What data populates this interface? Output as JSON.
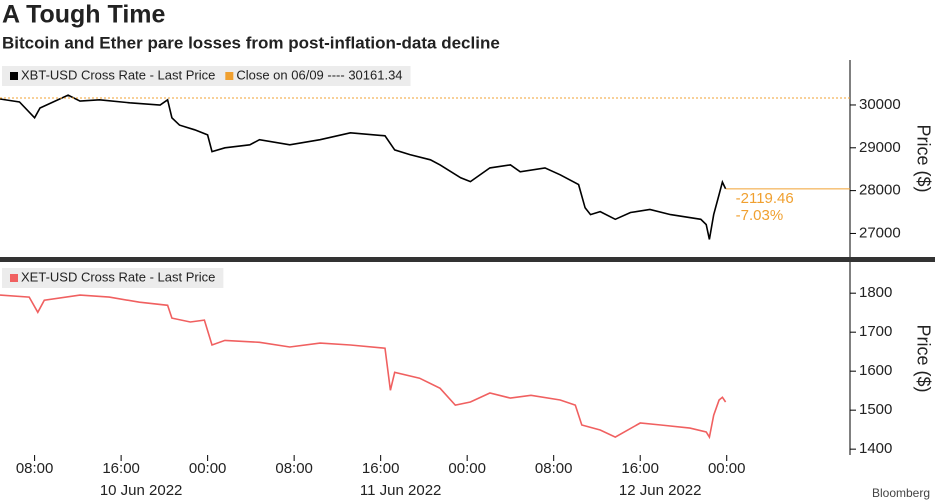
{
  "title": "A Tough Time",
  "subtitle": "Bitcoin and Ether pare losses from post-inflation-data decline",
  "source": "Bloomberg",
  "chart_data": [
    {
      "type": "line",
      "y_label": "Price ($)",
      "x": [
        4.8,
        6.6,
        8,
        8.5,
        11.1,
        12.2,
        14.0,
        16.8,
        19.6,
        20.3,
        20.7,
        21.4,
        22.8,
        24.0,
        24.4,
        25.6,
        27.9,
        28.8,
        31.6,
        34.4,
        37.2,
        40.4,
        41.3,
        42.7,
        44.6,
        45.5,
        47.4,
        48.3,
        50.1,
        52.0,
        52.9,
        55.2,
        56.6,
        58.3,
        58.9,
        59.4,
        60.3,
        61.7,
        63.1,
        64.9,
        66.8,
        69.6,
        70.1,
        70.4,
        70.8,
        71.3,
        71.6,
        71.9
      ],
      "series": [
        {
          "name": "XBT-USD Cross Rate - Last Price",
          "color": "#000000",
          "values": [
            30140,
            30070,
            29700,
            29930,
            30230,
            30090,
            30120,
            30050,
            30000,
            30120,
            29700,
            29530,
            29420,
            29300,
            28910,
            29000,
            29070,
            29190,
            29070,
            29190,
            29350,
            29280,
            28950,
            28840,
            28720,
            28600,
            28300,
            28210,
            28530,
            28600,
            28440,
            28530,
            28370,
            28140,
            27600,
            27440,
            27510,
            27330,
            27490,
            27560,
            27440,
            27330,
            27210,
            26860,
            27440,
            27910,
            28200,
            28041.88
          ]
        },
        {
          "name": "Close on 06/09 ---- 30161.34",
          "color": "#f0a030",
          "ref_value": 30161.34
        }
      ],
      "annotations": [
        "-2119.46",
        "-7.03%"
      ],
      "xlim": [
        4.8,
        83.4
      ],
      "ylim": [
        26450,
        31050
      ],
      "yticks": [
        27000,
        28000,
        29000,
        30000
      ]
    },
    {
      "type": "line",
      "y_label": "Price ($)",
      "x": [
        4.8,
        7.5,
        8.3,
        8.9,
        12.2,
        14.9,
        17.7,
        20.3,
        20.7,
        22.4,
        23.7,
        24.4,
        25.6,
        28.8,
        31.6,
        34.4,
        37.2,
        40.4,
        40.9,
        41.3,
        43.6,
        45.5,
        46.9,
        48.3,
        50.1,
        52.0,
        53.9,
        56.6,
        58.0,
        58.6,
        60.3,
        61.7,
        64.0,
        65.9,
        68.6,
        70.1,
        70.4,
        70.8,
        71.3,
        71.6,
        71.9
      ],
      "series": [
        {
          "name": "XET-USD Cross Rate - Last Price",
          "color": "#f06060",
          "values": [
            1795,
            1790,
            1751,
            1782,
            1795,
            1790,
            1777,
            1769,
            1736,
            1726,
            1731,
            1667,
            1679,
            1674,
            1662,
            1672,
            1667,
            1659,
            1551,
            1597,
            1582,
            1556,
            1513,
            1521,
            1544,
            1531,
            1538,
            1526,
            1513,
            1462,
            1449,
            1431,
            1467,
            1462,
            1454,
            1444,
            1431,
            1487,
            1526,
            1533,
            1521
          ]
        }
      ],
      "xlim": [
        4.8,
        83.4
      ],
      "ylim": [
        1385,
        1880
      ],
      "yticks": [
        1400,
        1500,
        1600,
        1700,
        1800
      ],
      "xticks": [
        {
          "value": 8,
          "label": "08:00"
        },
        {
          "value": 16,
          "label": "16:00"
        },
        {
          "value": 24,
          "label": "00:00"
        },
        {
          "value": 32,
          "label": "08:00"
        },
        {
          "value": 40,
          "label": "16:00"
        },
        {
          "value": 48,
          "label": "00:00"
        },
        {
          "value": 56,
          "label": "08:00"
        },
        {
          "value": 64,
          "label": "16:00"
        },
        {
          "value": 72,
          "label": "00:00"
        }
      ],
      "date_labels": [
        {
          "value": 16,
          "label": "10 Jun 2022"
        },
        {
          "value": 40,
          "label": "11 Jun 2022"
        },
        {
          "value": 64,
          "label": "12 Jun 2022"
        }
      ]
    }
  ]
}
